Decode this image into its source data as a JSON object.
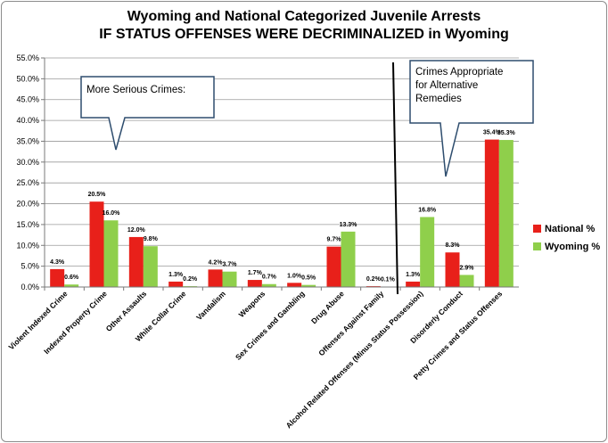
{
  "chart_data": {
    "type": "bar",
    "title": "Wyoming and National Categorized Juvenile Arrests",
    "subtitle": "IF STATUS OFFENSES WERE DECRIMINALIZED in Wyoming",
    "categories": [
      "Violent Indexed Crime",
      "Indexed Property Crime",
      "Other Assaults",
      "White Collar Crime",
      "Vandalism",
      "Weapons",
      "Sex Crimes and Gambling",
      "Drug Abuse",
      "Offenses Against Family",
      "Alcohol Related Offenses (Minus Status Possession)",
      "Disorderly Conduct",
      "Petty Crimes and Status Offenses"
    ],
    "series": [
      {
        "name": "National %",
        "color": "#e8201a",
        "values": [
          4.3,
          20.5,
          12.0,
          1.3,
          4.2,
          1.7,
          1.0,
          9.7,
          0.2,
          1.3,
          8.3,
          35.4
        ],
        "labels": [
          "4.3%",
          "20.5%",
          "12.0%",
          "1.3%",
          "4.2%",
          "1.7%",
          "1.0%",
          "9.7%",
          "0.2%",
          "1.3%",
          "8.3%",
          "35.4%"
        ]
      },
      {
        "name": "Wyoming %",
        "color": "#8fcf4b",
        "values": [
          0.6,
          16.0,
          9.8,
          0.2,
          3.7,
          0.7,
          0.5,
          13.3,
          0.1,
          16.8,
          2.9,
          35.3
        ],
        "labels": [
          "0.6%",
          "16.0%",
          "9.8%",
          "0.2%",
          "3.7%",
          "0.7%",
          "0.5%",
          "13.3%",
          "0.1%",
          "16.8%",
          "2.9%",
          "35.3%"
        ]
      }
    ],
    "ylim": [
      0,
      55
    ],
    "y_ticks": [
      "0.0%",
      "5.0%",
      "10.0%",
      "15.0%",
      "20.0%",
      "25.0%",
      "30.0%",
      "35.0%",
      "40.0%",
      "45.0%",
      "50.0%",
      "55.0%"
    ],
    "grid": true,
    "legend_position": "right",
    "annotations": {
      "left_callout": "More Serious Crimes:",
      "right_callout_lines": [
        "Crimes Appropriate",
        "for Alternative",
        "Remedies"
      ]
    }
  }
}
